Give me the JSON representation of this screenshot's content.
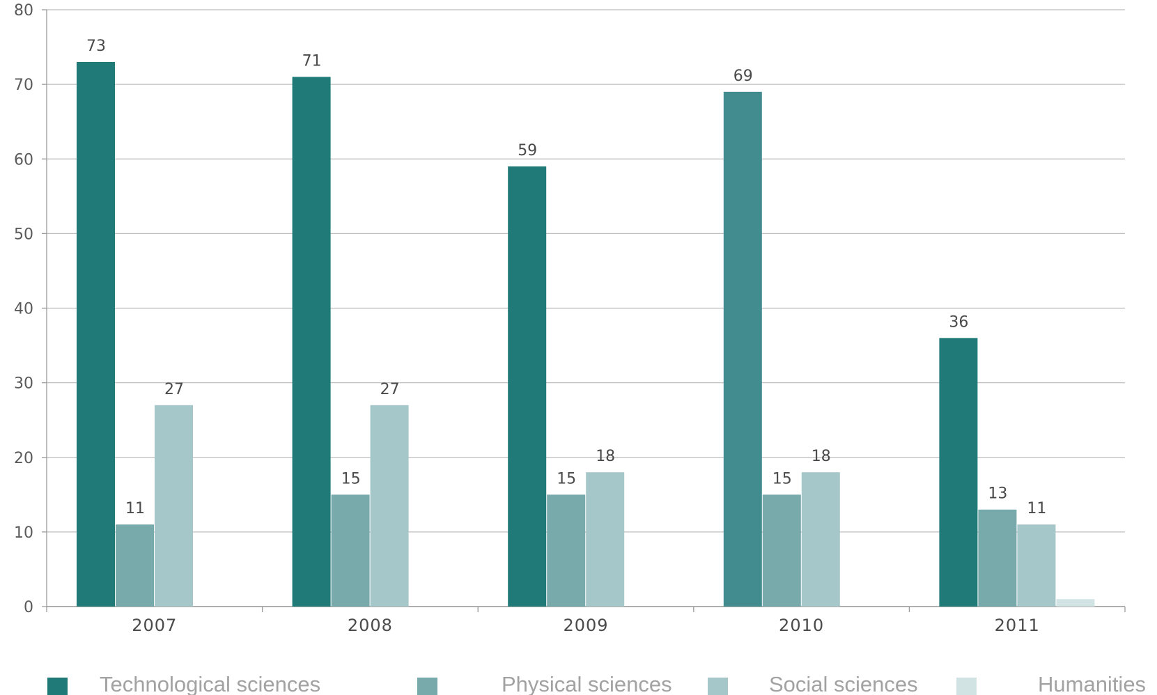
{
  "chart_data": {
    "type": "bar",
    "categories": [
      "2007",
      "2008",
      "2009",
      "2010",
      "2011"
    ],
    "series": [
      {
        "name": "Technological sciences",
        "values": [
          73,
          71,
          59,
          69,
          36
        ],
        "color": "#1f7a78"
      },
      {
        "name": "Physical sciences",
        "values": [
          11,
          15,
          15,
          15,
          13
        ],
        "color": "#78aaac"
      },
      {
        "name": "Social sciences",
        "values": [
          27,
          27,
          18,
          18,
          11
        ],
        "color": "#a6c7c9"
      },
      {
        "name": "Humanities",
        "values": [
          0,
          0,
          0,
          0,
          1
        ],
        "color": "#d2e3e4"
      }
    ],
    "data_labels": [
      [
        "73",
        "71",
        "59",
        "69",
        "36"
      ],
      [
        "11",
        "15",
        "15",
        "15",
        "13"
      ],
      [
        "27",
        "27",
        "18",
        "18",
        "11"
      ],
      [
        "",
        "",
        "",
        "",
        ""
      ]
    ],
    "y_ticks": [
      "0",
      "10",
      "20",
      "30",
      "40",
      "50",
      "60",
      "70",
      "80"
    ],
    "ylim": [
      0,
      80
    ],
    "grid": true,
    "legend_position": "bottom",
    "title": "",
    "xlabel": "",
    "ylabel": ""
  }
}
